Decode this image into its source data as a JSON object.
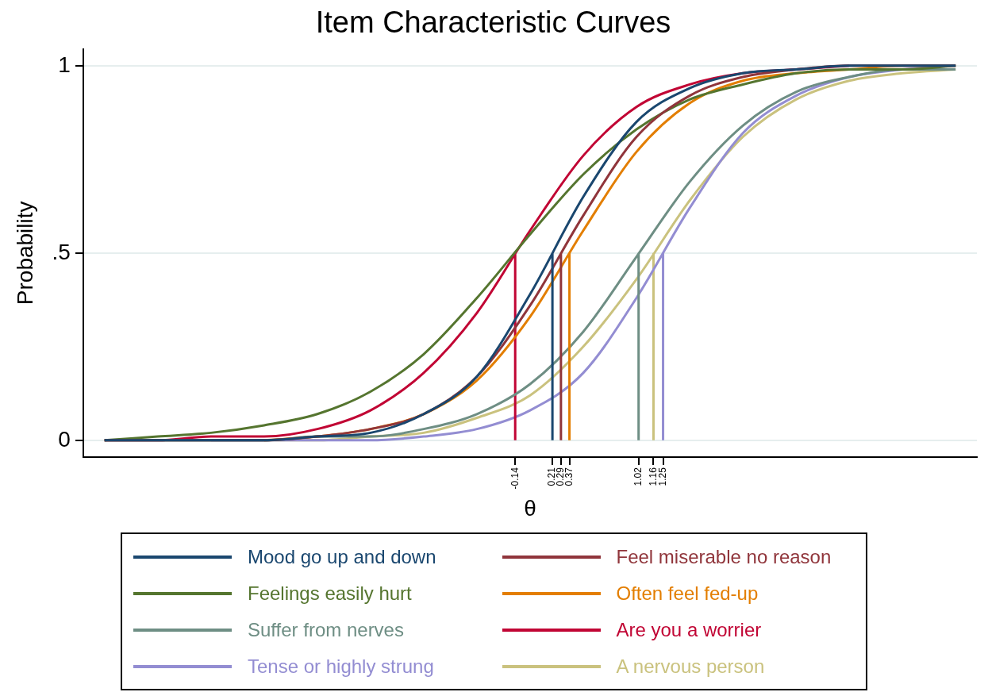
{
  "chart_data": {
    "type": "line",
    "title": "Item Characteristic Curves",
    "xlabel": "θ",
    "ylabel": "Probability",
    "series": [
      {
        "name": "Mood go up and down",
        "color": "#1a476f",
        "x": [
          -4,
          -3.5,
          -3,
          -2.5,
          -2,
          -1.5,
          -1,
          -0.5,
          0,
          0.5,
          1,
          1.5,
          2,
          2.5,
          3,
          3.5,
          4,
          null,
          0.21,
          0.21
        ],
        "values": [
          0,
          0,
          0,
          0,
          0.01,
          0.02,
          0.07,
          0.17,
          0.39,
          0.65,
          0.85,
          0.94,
          0.98,
          0.99,
          1,
          1,
          1,
          null,
          0,
          0.5
        ]
      },
      {
        "name": "Feel miserable no reason",
        "color": "#90353b",
        "x": [
          -4,
          -3.5,
          -3,
          -2.5,
          -2,
          -1.5,
          -1,
          -0.5,
          0,
          0.5,
          1,
          1.5,
          2,
          2.5,
          3,
          3.5,
          4,
          null,
          0.29,
          0.29
        ],
        "values": [
          0,
          0,
          0,
          0,
          0.01,
          0.03,
          0.07,
          0.17,
          0.36,
          0.6,
          0.81,
          0.92,
          0.97,
          0.99,
          1,
          1,
          1,
          null,
          0,
          0.5
        ]
      },
      {
        "name": "Feelings easily hurt",
        "color": "#55752f",
        "x": [
          -4,
          -3.5,
          -3,
          -2.5,
          -2,
          -1.5,
          -1,
          -0.5,
          0,
          0.5,
          1,
          1.5,
          2,
          2.5,
          3,
          3.5,
          4
        ],
        "values": [
          0,
          0.01,
          0.02,
          0.04,
          0.07,
          0.13,
          0.23,
          0.38,
          0.55,
          0.71,
          0.83,
          0.91,
          0.95,
          0.98,
          0.99,
          0.99,
          1
        ]
      },
      {
        "name": "Often feel fed-up",
        "color": "#e37e00",
        "x": [
          -2.5,
          -2,
          -1.5,
          -1,
          -0.5,
          0,
          0.5,
          1,
          1.5,
          2,
          2.5,
          3,
          3.5,
          4,
          null,
          0.37,
          0.37
        ],
        "values": [
          0,
          0.01,
          0.03,
          0.07,
          0.16,
          0.33,
          0.56,
          0.77,
          0.9,
          0.96,
          0.98,
          0.99,
          1,
          1,
          null,
          0,
          0.5
        ]
      },
      {
        "name": "Suffer from nerves",
        "color": "#6e8e84",
        "x": [
          -4,
          -3.5,
          -3,
          -2.5,
          -2,
          -1.5,
          -1,
          -0.5,
          0,
          0.5,
          1,
          1.5,
          2,
          2.5,
          3,
          3.5,
          4,
          null,
          1.02,
          1.02
        ],
        "values": [
          0,
          0,
          0,
          0,
          0.01,
          0.01,
          0.03,
          0.07,
          0.15,
          0.29,
          0.49,
          0.69,
          0.84,
          0.93,
          0.97,
          0.99,
          0.99,
          null,
          0,
          0.5
        ]
      },
      {
        "name": "Are you a worrier",
        "color": "#c10534",
        "x": [
          -4,
          -3.5,
          -3,
          -2.5,
          -2,
          -1.5,
          -1,
          -0.5,
          0,
          0.5,
          1,
          1.5,
          2,
          2.5,
          3,
          null,
          -0.14,
          -0.14
        ],
        "values": [
          0,
          0,
          0.01,
          0.01,
          0.03,
          0.08,
          0.18,
          0.34,
          0.56,
          0.76,
          0.89,
          0.95,
          0.98,
          0.99,
          1,
          null,
          0,
          0.5
        ]
      },
      {
        "name": "Tense or highly strung",
        "color": "#938dd2",
        "x": [
          -3,
          -2.5,
          -2,
          -1.5,
          -1,
          -0.5,
          0,
          0.5,
          1,
          1.5,
          2,
          2.5,
          3,
          3.5,
          4,
          null,
          1.25,
          1.25
        ],
        "values": [
          0,
          0,
          0,
          0,
          0.01,
          0.03,
          0.08,
          0.18,
          0.38,
          0.62,
          0.82,
          0.92,
          0.97,
          0.99,
          1,
          null,
          0,
          0.5
        ]
      },
      {
        "name": "A nervous person",
        "color": "#cac27e",
        "x": [
          -4,
          -3.5,
          -3,
          -2.5,
          -2,
          -1.5,
          -1,
          -0.5,
          0,
          0.5,
          1,
          1.5,
          2,
          2.5,
          3,
          3.5,
          4,
          null,
          1.16,
          1.16
        ],
        "values": [
          0,
          0,
          0,
          0,
          0,
          0.01,
          0.02,
          0.06,
          0.12,
          0.25,
          0.43,
          0.64,
          0.81,
          0.91,
          0.96,
          0.98,
          0.99,
          null,
          0,
          0.5
        ]
      }
    ],
    "xlim": [
      -4.2,
      4.2
    ],
    "xticks": [
      -0.14,
      0.21,
      0.29,
      0.37,
      1.02,
      1.16,
      1.25
    ],
    "ylim": [
      -0.045,
      1.045
    ],
    "yticks": [
      0,
      {
        "value": 0.5,
        "label": ".5"
      },
      1
    ],
    "grid": "y",
    "legend": "bottom",
    "marker": "none",
    "line_style": "solid"
  }
}
